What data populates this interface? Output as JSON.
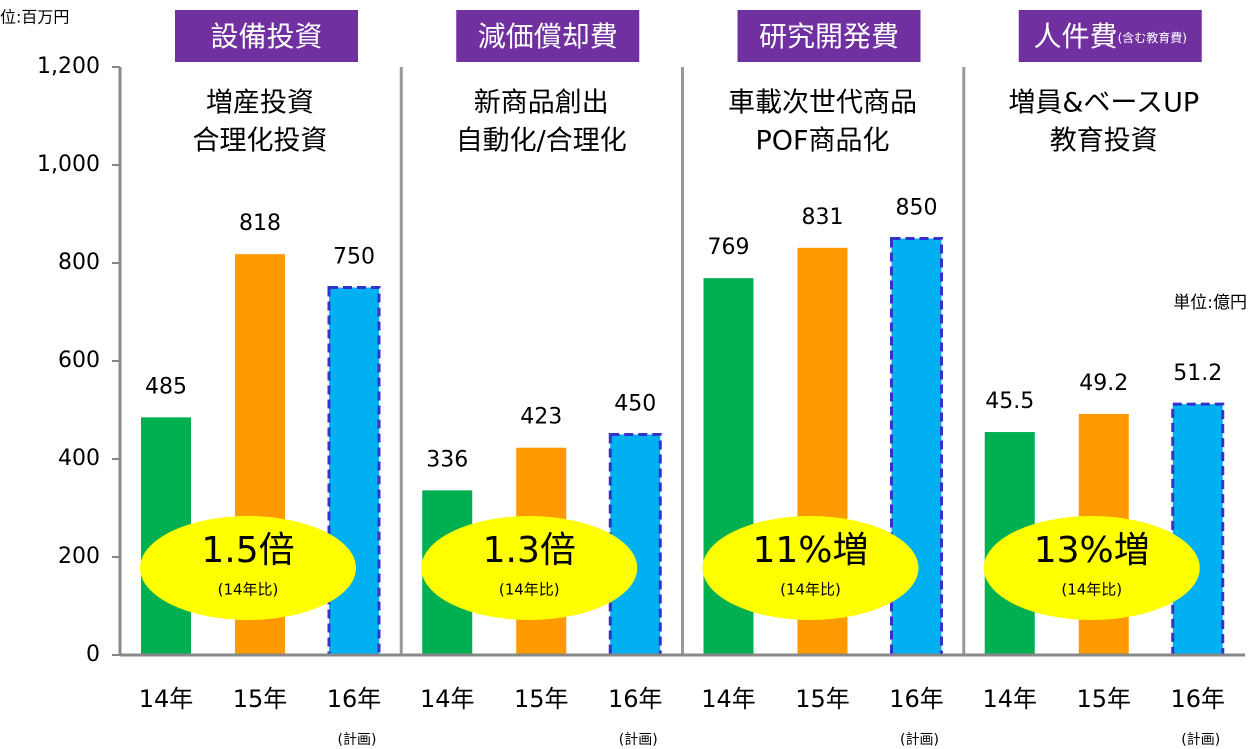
{
  "chart_data": [
    {
      "type": "bar",
      "unit": "位:百万円",
      "title": "設備投資",
      "subtitle": [
        "増産投資",
        "合理化投資"
      ],
      "categories": [
        "14年",
        "15年",
        "16年"
      ],
      "plan_label": "(計画)",
      "values": [
        485,
        818,
        750
      ],
      "colors": [
        "#00b050",
        "#ff9900",
        "#00b0f0"
      ],
      "plan_border": "#3333cc",
      "annotation": "1.5倍",
      "annotation_note": "(14年比)",
      "ylim": [
        0,
        1200
      ],
      "yticks": [
        0,
        200,
        400,
        600,
        800,
        {
          "value": 1000,
          "label": "1,000"
        },
        {
          "value": 1200,
          "label": "1,200"
        }
      ]
    },
    {
      "type": "bar",
      "title": "減価償却費",
      "subtitle": [
        "新商品創出",
        "自動化/合理化"
      ],
      "categories": [
        "14年",
        "15年",
        "16年"
      ],
      "plan_label": "(計画)",
      "values": [
        336,
        423,
        450
      ],
      "colors": [
        "#00b050",
        "#ff9900",
        "#00b0f0"
      ],
      "plan_border": "#3333cc",
      "annotation": "1.3倍",
      "annotation_note": "(14年比)",
      "ylim": [
        0,
        1200
      ]
    },
    {
      "type": "bar",
      "title": "研究開発費",
      "subtitle": [
        "車載次世代商品",
        "POF商品化"
      ],
      "categories": [
        "14年",
        "15年",
        "16年"
      ],
      "plan_label": "(計画)",
      "values": [
        769,
        831,
        850
      ],
      "colors": [
        "#00b050",
        "#ff9900",
        "#00b0f0"
      ],
      "plan_border": "#3333cc",
      "annotation": "11%増",
      "annotation_note": "(14年比)",
      "ylim": [
        0,
        1200
      ]
    },
    {
      "type": "bar",
      "unit": "単位:億円",
      "title": "人件費",
      "title_note": "(含む教育費)",
      "subtitle": [
        "増員&ベースUP",
        "教育投資"
      ],
      "categories": [
        "14年",
        "15年",
        "16年"
      ],
      "plan_label": "(計画)",
      "values": [
        45.5,
        49.2,
        51.2
      ],
      "colors": [
        "#00b050",
        "#ff9900",
        "#00b0f0"
      ],
      "plan_border": "#3333cc",
      "annotation": "13%増",
      "annotation_note": "(14年比)",
      "ylim": [
        0,
        120
      ]
    }
  ]
}
